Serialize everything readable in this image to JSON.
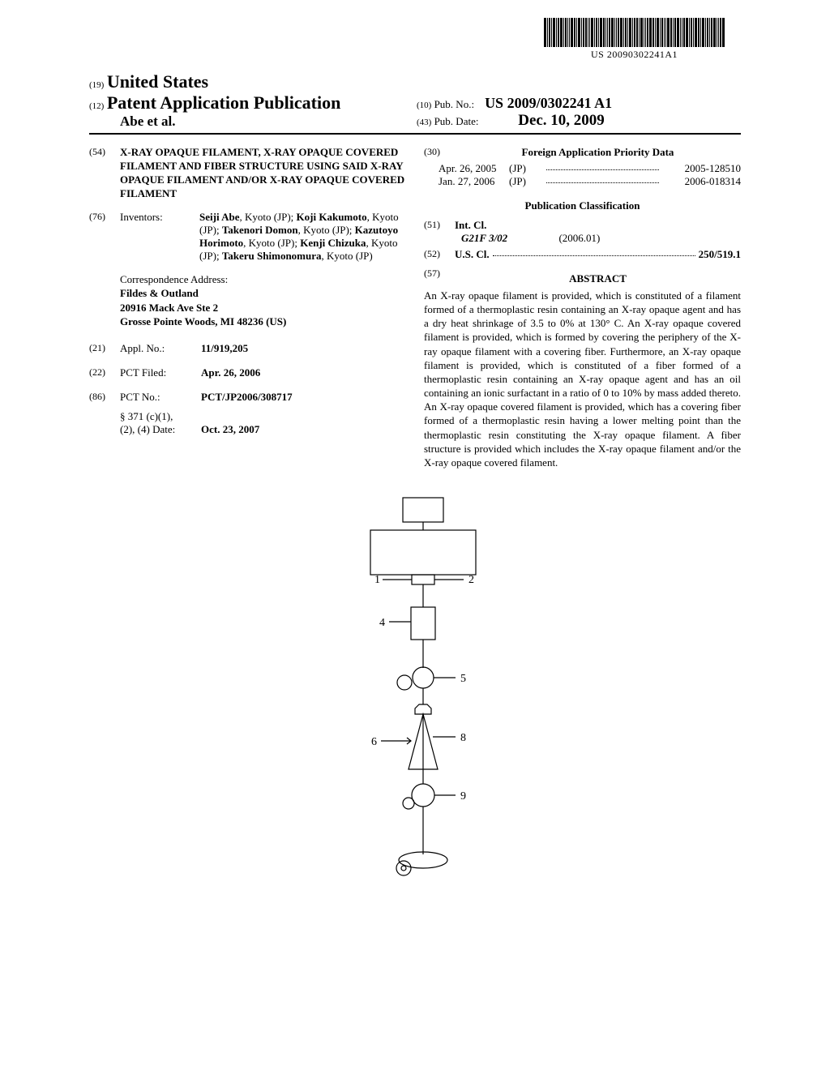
{
  "document": {
    "barcode_text": "US 20090302241A1",
    "country_code": "(19)",
    "country": "United States",
    "pub_type_code": "(12)",
    "pub_type": "Patent Application Publication",
    "authors_line": "Abe et al.",
    "pub_no_code": "(10)",
    "pub_no_label": "Pub. No.:",
    "pub_no_value": "US 2009/0302241 A1",
    "pub_date_code": "(43)",
    "pub_date_label": "Pub. Date:",
    "pub_date_value": "Dec. 10, 2009"
  },
  "left": {
    "title_code": "(54)",
    "title": "X-RAY OPAQUE FILAMENT, X-RAY OPAQUE COVERED FILAMENT AND FIBER STRUCTURE USING SAID X-RAY OPAQUE FILAMENT AND/OR X-RAY OPAQUE COVERED FILAMENT",
    "inventors_code": "(76)",
    "inventors_label": "Inventors:",
    "inventors_html": "Seiji Abe|, Kyoto (JP); |Koji Kakumoto|, Kyoto (JP); |Takenori Domon|, Kyoto (JP); |Kazutoyo Horimoto|, Kyoto (JP); |Kenji Chizuka|, Kyoto (JP); |Takeru Shimonomura|, Kyoto (JP)",
    "corr_head": "Correspondence Address:",
    "corr_name": "Fildes & Outland",
    "corr_addr1": "20916 Mack Ave Ste 2",
    "corr_addr2": "Grosse Pointe Woods, MI 48236 (US)",
    "appl_code": "(21)",
    "appl_label": "Appl. No.:",
    "appl_val": "11/919,205",
    "pct_filed_code": "(22)",
    "pct_filed_label": "PCT Filed:",
    "pct_filed_val": "Apr. 26, 2006",
    "pct_no_code": "(86)",
    "pct_no_label": "PCT No.:",
    "pct_no_val": "PCT/JP2006/308717",
    "s371_l1": "§ 371 (c)(1),",
    "s371_l2": "(2), (4) Date:",
    "s371_val": "Oct. 23, 2007"
  },
  "right": {
    "priority_code": "(30)",
    "priority_head": "Foreign Application Priority Data",
    "priority": [
      {
        "date": "Apr. 26, 2005",
        "cc": "(JP)",
        "num": "2005-128510"
      },
      {
        "date": "Jan. 27, 2006",
        "cc": "(JP)",
        "num": "2006-018314"
      }
    ],
    "class_head": "Publication Classification",
    "intcl_code": "(51)",
    "intcl_label": "Int. Cl.",
    "intcl_sym": "G21F 3/02",
    "intcl_year": "(2006.01)",
    "uscl_code": "(52)",
    "uscl_label": "U.S. Cl.",
    "uscl_val": "250/519.1",
    "abstract_code": "(57)",
    "abstract_head": "ABSTRACT",
    "abstract": "An X-ray opaque filament is provided, which is constituted of a filament formed of a thermoplastic resin containing an X-ray opaque agent and has a dry heat shrinkage of 3.5 to 0% at 130° C. An X-ray opaque covered filament is provided, which is formed by covering the periphery of the X-ray opaque filament with a covering fiber. Furthermore, an X-ray opaque filament is provided, which is constituted of a fiber formed of a thermoplastic resin containing an X-ray opaque agent and has an oil containing an ionic surfactant in a ratio of 0 to 10% by mass added thereto. An X-ray opaque covered filament is provided, which has a covering fiber formed of a thermoplastic resin having a lower melting point than the thermoplastic resin constituting the X-ray opaque filament. A fiber structure is provided which includes the X-ray opaque filament and/or the X-ray opaque covered filament."
  },
  "figure": {
    "labels": [
      "1",
      "2",
      "4",
      "5",
      "6",
      "8",
      "9"
    ]
  },
  "style": {
    "text_color": "#000000",
    "bg_color": "#ffffff"
  }
}
